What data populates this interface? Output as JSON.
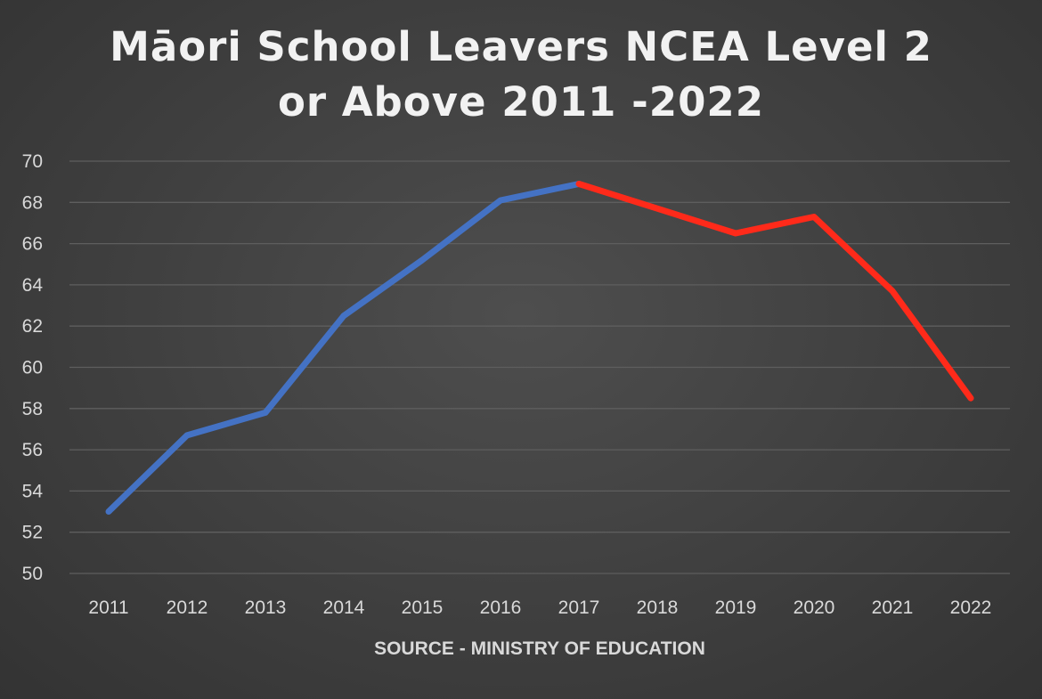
{
  "chart_data": {
    "type": "line",
    "title_lines": [
      "Māori School Leavers NCEA Level 2",
      "or Above 2011 -2022"
    ],
    "xlabel": "SOURCE - MINISTRY OF EDUCATION",
    "ylabel": "",
    "categories": [
      "2011",
      "2012",
      "2013",
      "2014",
      "2015",
      "2016",
      "2017",
      "2018",
      "2019",
      "2020",
      "2021",
      "2022"
    ],
    "ylim": [
      50,
      70
    ],
    "yticks": [
      50,
      52,
      54,
      56,
      58,
      60,
      62,
      64,
      66,
      68,
      70
    ],
    "grid": true,
    "legend": "none",
    "series": [
      {
        "color": "#4472c4",
        "x": [
          "2011",
          "2012",
          "2013",
          "2014",
          "2015",
          "2016",
          "2017"
        ],
        "values": [
          53.0,
          56.7,
          57.8,
          62.5,
          65.2,
          68.1,
          68.9
        ]
      },
      {
        "color": "#ff2a1a",
        "x": [
          "2017",
          "2018",
          "2019",
          "2020",
          "2021",
          "2022"
        ],
        "values": [
          68.9,
          67.7,
          66.5,
          67.3,
          63.7,
          58.5
        ]
      }
    ]
  }
}
